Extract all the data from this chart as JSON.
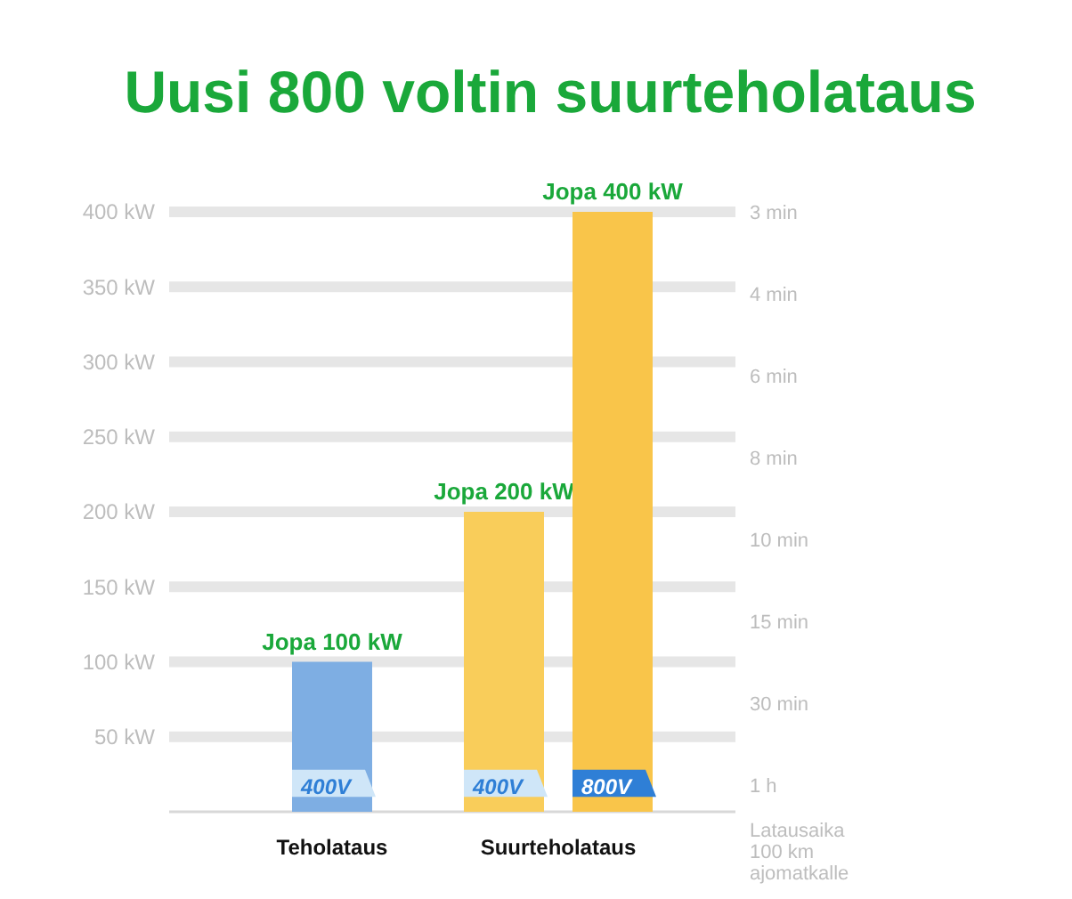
{
  "chart_data": {
    "type": "bar",
    "title": "Uusi 800 voltin suurteholataus",
    "categories": [
      "Teholataus",
      "Suurteholataus"
    ],
    "series": [
      {
        "name": "400V",
        "colors": [
          "#7eaee3",
          "#f9cd5a"
        ],
        "values": [
          100,
          200
        ],
        "value_labels": [
          "Jopa 100 kW",
          "Jopa 200 kW"
        ]
      },
      {
        "name": "800V",
        "color": "#f9c54a",
        "values": [
          null,
          400
        ],
        "value_labels": [
          null,
          "Jopa 400 kW"
        ]
      }
    ],
    "ylim": [
      0,
      400
    ],
    "yticks": [
      {
        "value": 50,
        "label": "50 kW"
      },
      {
        "value": 100,
        "label": "100 kW"
      },
      {
        "value": 150,
        "label": "150 kW"
      },
      {
        "value": 200,
        "label": "200 kW"
      },
      {
        "value": 250,
        "label": "250 kW"
      },
      {
        "value": 300,
        "label": "300 kW"
      },
      {
        "value": 350,
        "label": "350 kW"
      },
      {
        "value": 400,
        "label": "400 kW"
      }
    ],
    "annotations": [
      "3 min",
      "4 min",
      "6 min",
      "8 min",
      "10 min",
      "15 min",
      "30 min",
      "1 h",
      "Latausaika\n100 km\najomatkalle"
    ],
    "grid": "y"
  }
}
